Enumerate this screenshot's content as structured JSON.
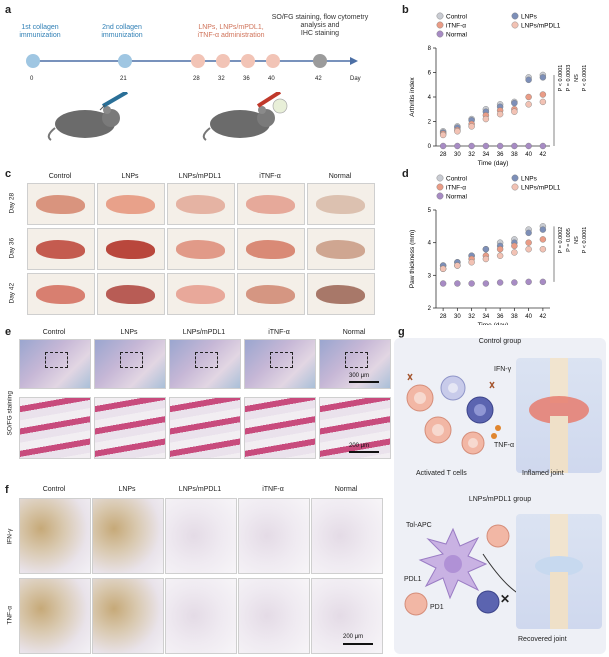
{
  "panel_labels": {
    "a": "a",
    "b": "b",
    "c": "c",
    "d": "d",
    "e": "e",
    "f": "f",
    "g": "g"
  },
  "timeline": {
    "step1": "1st collagen\nimmunization",
    "step2": "2nd collagen\nimmunization",
    "step3": "LNPs, LNPs/mPDL1,\niTNF-α administration",
    "step4": "SO/FG staining, flow cytometry\nanalysis and\nIHC staining",
    "days": [
      "0",
      "21",
      "28",
      "32",
      "36",
      "40",
      "42"
    ],
    "axis_label": "Day",
    "colors": {
      "blue": "#7fb3d6",
      "pink": "#f0b7a6",
      "grey": "#9b9b9b",
      "line": "#4c6fa5"
    }
  },
  "groups": [
    "Control",
    "LNPs",
    "LNPs/mPDL1",
    "iTNF-α",
    "Normal"
  ],
  "panel_c": {
    "rows": [
      "Day 28",
      "Day 36",
      "Day 42"
    ]
  },
  "panel_e": {
    "row_label": "SO/FG staining",
    "scale_top": "300 μm",
    "scale_bottom": "200 μm"
  },
  "panel_f": {
    "rows": [
      "IFN-γ",
      "TNF-α"
    ],
    "scale": "200 μm"
  },
  "panel_g": {
    "title1": "Control group",
    "ifn": "IFN-γ",
    "tnf": "TNF-α",
    "cells": "Activated T cells",
    "joint1": "Inflamed joint",
    "title2": "LNPs/mPDL1 group",
    "tolapc": "Tol-APC",
    "pdl1": "PDL1",
    "pd1": "PD1",
    "joint2": "Recovered joint"
  },
  "chart_data": [
    {
      "type": "scatter",
      "ylabel": "Arthritis index",
      "xlabel": "Time (day)",
      "x": [
        28,
        30,
        32,
        34,
        36,
        38,
        40,
        42
      ],
      "ylim": [
        0,
        8
      ],
      "yticks": [
        0,
        2,
        4,
        6,
        8
      ],
      "legend": [
        "Control",
        "LNPs",
        "iTNF-α",
        "LNPs/mPDL1",
        "Normal"
      ],
      "series": [
        {
          "name": "Control",
          "color": "#c9ccd3",
          "values": [
            1.2,
            1.6,
            2.2,
            3.0,
            3.4,
            3.6,
            5.6,
            5.8
          ]
        },
        {
          "name": "LNPs",
          "color": "#7d8fb8",
          "values": [
            1.1,
            1.5,
            2.1,
            2.8,
            3.2,
            3.5,
            5.4,
            5.6
          ]
        },
        {
          "name": "iTNF-α",
          "color": "#ea9c86",
          "values": [
            1.0,
            1.3,
            1.8,
            2.5,
            2.9,
            3.0,
            4.0,
            4.2
          ]
        },
        {
          "name": "LNPs/mPDL1",
          "color": "#f2c2b4",
          "values": [
            0.9,
            1.2,
            1.6,
            2.2,
            2.6,
            2.8,
            3.4,
            3.6
          ]
        },
        {
          "name": "Normal",
          "color": "#a78bc4",
          "values": [
            0,
            0,
            0,
            0,
            0,
            0,
            0,
            0
          ]
        }
      ],
      "annotations": [
        "P < 0.0001",
        "P = 0.0003",
        "NS",
        "P < 0.0001"
      ]
    },
    {
      "type": "scatter",
      "ylabel": "Paw thickness (mm)",
      "xlabel": "Time (day)",
      "x": [
        28,
        30,
        32,
        34,
        36,
        38,
        40,
        42
      ],
      "ylim": [
        2,
        5
      ],
      "yticks": [
        2,
        3,
        4,
        5
      ],
      "legend": [
        "Control",
        "LNPs",
        "iTNF-α",
        "LNPs/mPDL1",
        "Normal"
      ],
      "series": [
        {
          "name": "Control",
          "color": "#c9ccd3",
          "values": [
            3.3,
            3.4,
            3.6,
            3.8,
            4.0,
            4.1,
            4.4,
            4.5
          ]
        },
        {
          "name": "LNPs",
          "color": "#7d8fb8",
          "values": [
            3.3,
            3.4,
            3.6,
            3.8,
            3.9,
            4.0,
            4.3,
            4.4
          ]
        },
        {
          "name": "iTNF-α",
          "color": "#ea9c86",
          "values": [
            3.2,
            3.3,
            3.5,
            3.6,
            3.8,
            3.9,
            4.0,
            4.1
          ]
        },
        {
          "name": "LNPs/mPDL1",
          "color": "#f2c2b4",
          "values": [
            3.2,
            3.3,
            3.4,
            3.5,
            3.6,
            3.7,
            3.8,
            3.8
          ]
        },
        {
          "name": "Normal",
          "color": "#a78bc4",
          "values": [
            2.75,
            2.75,
            2.75,
            2.75,
            2.78,
            2.78,
            2.8,
            2.8
          ]
        }
      ],
      "annotations": [
        "P = 0.0002",
        "P = 0.005",
        "NS",
        "P < 0.0001"
      ]
    }
  ]
}
